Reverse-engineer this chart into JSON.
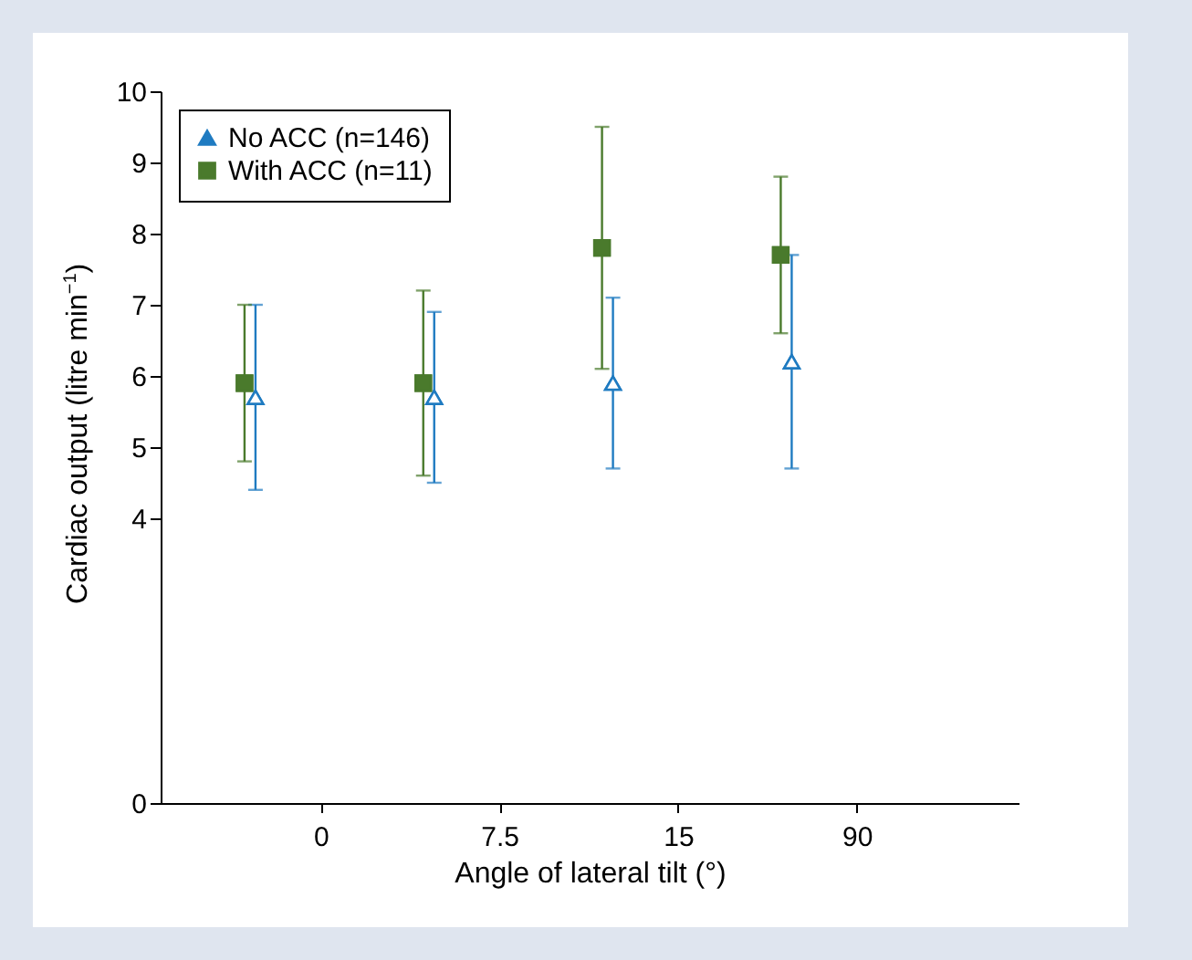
{
  "chart_data": {
    "type": "scatter",
    "xlabel": "Angle of lateral tilt (°)",
    "ylabel": "Cardiac output (litre min$^{−1}$)",
    "categories": [
      "0",
      "7.5",
      "15",
      "90"
    ],
    "series": [
      {
        "name": "No ACC (n=146)",
        "color": "#1f7bc1",
        "marker": "triangle",
        "values": [
          5.7,
          5.7,
          5.9,
          6.2
        ],
        "errors": [
          [
            4.4,
            7.0
          ],
          [
            4.5,
            6.9
          ],
          [
            4.7,
            7.1
          ],
          [
            4.7,
            7.7
          ]
        ]
      },
      {
        "name": "With ACC (n=11)",
        "color": "#4a7a2c",
        "marker": "square",
        "values": [
          5.9,
          5.9,
          7.8,
          7.7
        ],
        "errors": [
          [
            4.8,
            7.0
          ],
          [
            4.6,
            7.2
          ],
          [
            6.1,
            9.5
          ],
          [
            6.6,
            8.8
          ]
        ]
      }
    ],
    "ylim": [
      0,
      10
    ],
    "yticks": [
      0,
      4,
      5,
      6,
      7,
      8,
      9,
      10
    ],
    "grid": false,
    "legend": "top left"
  }
}
